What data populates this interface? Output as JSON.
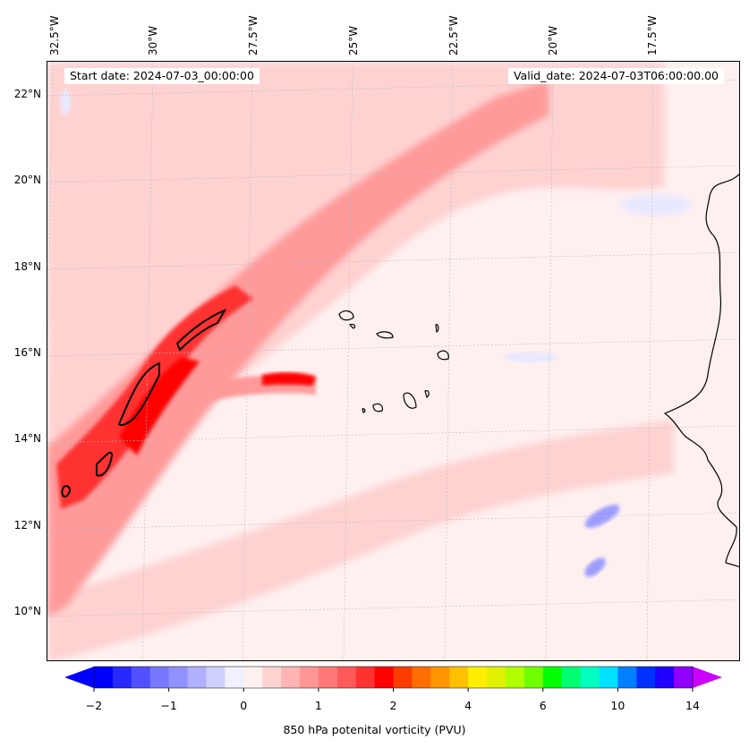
{
  "header": {
    "start_date": "Start date: 2024-07-03_00:00:00",
    "valid_date": "Valid_date: 2024-07-03T06:00:00.00"
  },
  "map": {
    "lon_labels": [
      "32.5°W",
      "30°W",
      "27.5°W",
      "25°W",
      "22.5°W",
      "20°W",
      "17.5°W"
    ],
    "lat_labels": [
      "22°N",
      "20°N",
      "18°N",
      "16°N",
      "14°N",
      "12°N",
      "10°N"
    ],
    "colors": {
      "background": "#fff0f0",
      "light_red": "#ffd2d2",
      "medium_red": "#ff9a9a",
      "strong_red": "#ff3030",
      "peak_red": "#ff0000",
      "light_blue": "#e8e8ff",
      "medium_blue": "#9c9cff",
      "strong_blue": "#4848ff",
      "contour": "#000000"
    }
  },
  "colorbar": {
    "title": "850 hPa potenital vorticity (PVU)",
    "tick_labels": [
      "−2",
      "−1",
      "0",
      "1",
      "2",
      "4",
      "6",
      "10",
      "14"
    ],
    "colors": [
      "#0000ff",
      "#2828ff",
      "#5050ff",
      "#7878ff",
      "#9090ff",
      "#b0b0ff",
      "#d0d0ff",
      "#f0f0ff",
      "#fff0f0",
      "#ffd2d2",
      "#ffb4b4",
      "#ff9696",
      "#ff7878",
      "#ff5a5a",
      "#ff3232",
      "#ff0000",
      "#ff3c00",
      "#ff6e00",
      "#ff9600",
      "#ffc000",
      "#ffee00",
      "#e0f000",
      "#b0ff00",
      "#70ff00",
      "#00ff00",
      "#00ff70",
      "#00ffc0",
      "#00e0ff",
      "#0080ff",
      "#0030ff",
      "#2000ff",
      "#9000ff"
    ],
    "under_color": "#0000ff",
    "over_color": "#cc00ff"
  }
}
